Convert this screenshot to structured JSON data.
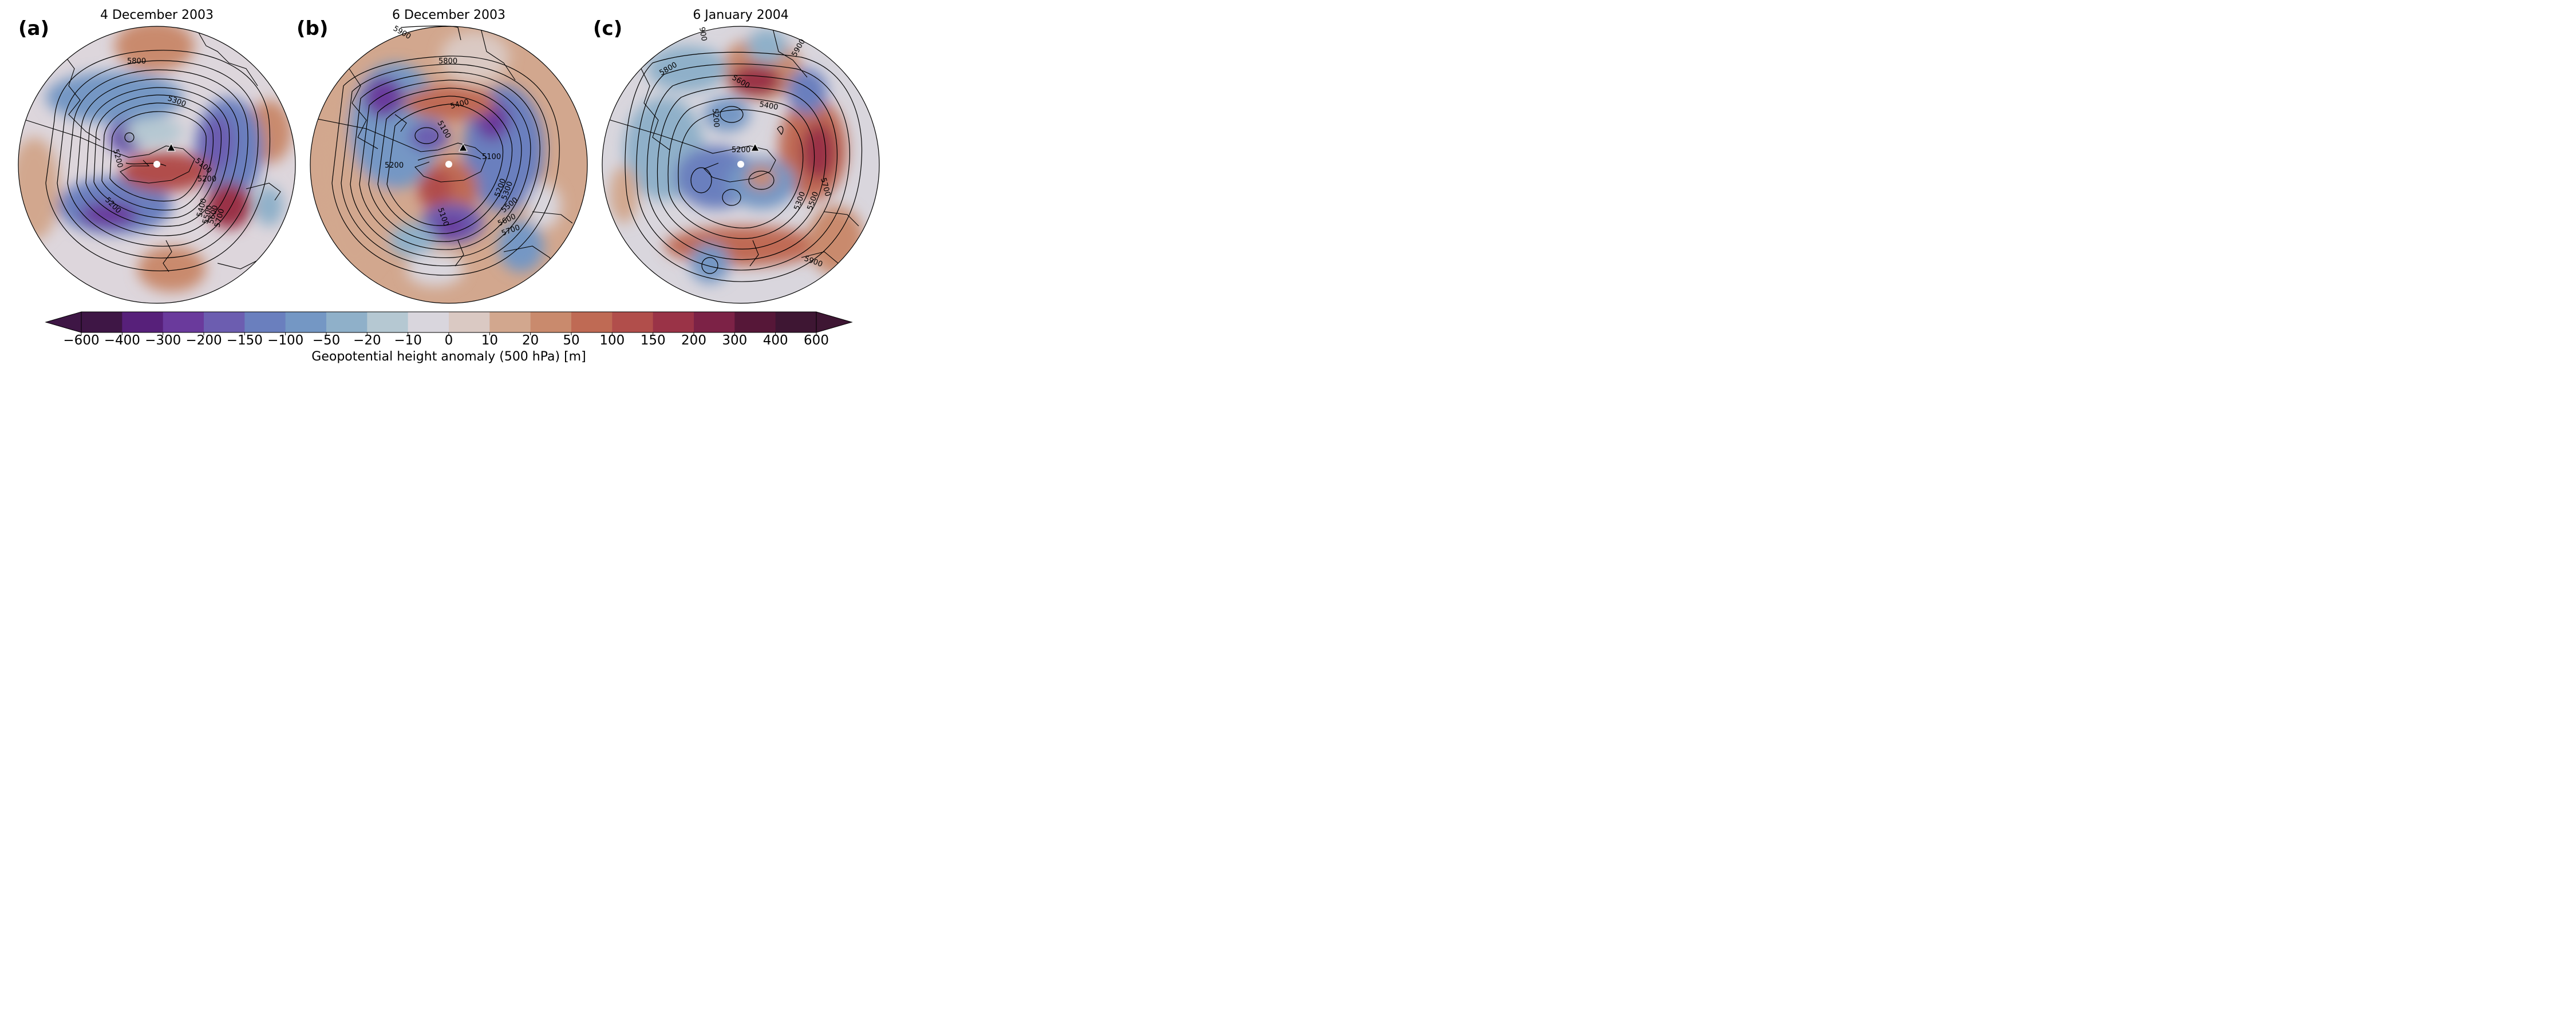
{
  "panels": [
    {
      "letter": "(a)",
      "title": "4 December 2003",
      "contour_labels": [
        "5800",
        "5300",
        "5200",
        "5200",
        "5100",
        "5200",
        "5400",
        "5500",
        "5600",
        "5700"
      ]
    },
    {
      "letter": "(b)",
      "title": "6 December 2003",
      "contour_labels": [
        "5900",
        "5800",
        "5400",
        "5100",
        "5200",
        "5100",
        "5100",
        "5200",
        "5300",
        "5500",
        "5600",
        "5700"
      ]
    },
    {
      "letter": "(c)",
      "title": "6 January 2004",
      "contour_labels": [
        "900",
        "5900",
        "5800",
        "5600",
        "5400",
        "5200",
        "5200",
        "5300",
        "5500",
        "5700",
        "5900"
      ]
    }
  ],
  "colorbar": {
    "label": "Geopotential height anomaly (500 hPa) [m]",
    "ticks": [
      "−600",
      "−400",
      "−300",
      "−200",
      "−150",
      "−100",
      "−50",
      "−20",
      "−10",
      "0",
      "10",
      "20",
      "50",
      "100",
      "150",
      "200",
      "300",
      "400",
      "600"
    ],
    "colors": [
      "#3e1645",
      "#57207a",
      "#6a3a9c",
      "#6c5db0",
      "#6a7fbe",
      "#7497c4",
      "#8fb0c9",
      "#b5c8d2",
      "#d9d6dd",
      "#dac9c3",
      "#d2a78e",
      "#c98a6d",
      "#bf6a54",
      "#b14e4b",
      "#9a3347",
      "#7c2246",
      "#561738",
      "#3e1633"
    ]
  }
}
